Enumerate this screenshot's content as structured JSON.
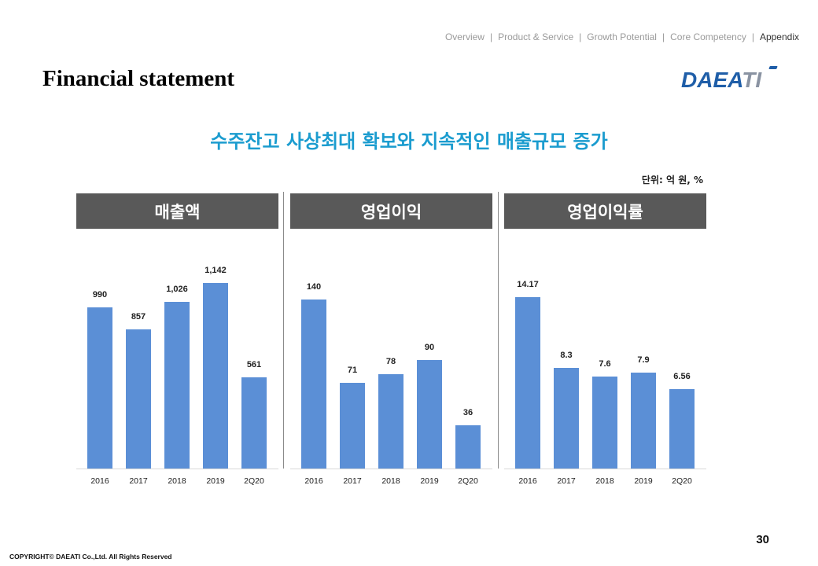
{
  "nav": {
    "items": [
      "Overview",
      "Product & Service",
      "Growth Potential",
      "Core Competency",
      "Appendix"
    ],
    "separator": "|",
    "active": "Appendix"
  },
  "title": "Financial statement",
  "logo": {
    "main": "DAEA",
    "accent": "TI"
  },
  "headline": "수주잔고 사상최대 확보와 지속적인 매출규모 증가",
  "unit_label": "단위: 억 원, %",
  "colors": {
    "bar": "#5b8fd6",
    "header_bg": "#595959",
    "headline": "#1b9ccf",
    "logo": "#1f5ea8"
  },
  "chart_data": [
    {
      "type": "bar",
      "title": "매출액",
      "categories": [
        "2016",
        "2017",
        "2018",
        "2019",
        "2Q20"
      ],
      "values": [
        990,
        857,
        1026,
        1142,
        561
      ],
      "labels": [
        "990",
        "857",
        "1,026",
        "1,142",
        "561"
      ],
      "ylim": [
        0,
        1450
      ]
    },
    {
      "type": "bar",
      "title": "영업이익",
      "categories": [
        "2016",
        "2017",
        "2018",
        "2019",
        "2Q20"
      ],
      "values": [
        140,
        71,
        78,
        90,
        36
      ],
      "labels": [
        "140",
        "71",
        "78",
        "90",
        "36"
      ],
      "ylim": [
        0,
        195
      ]
    },
    {
      "type": "bar",
      "title": "영업이익률",
      "categories": [
        "2016",
        "2017",
        "2018",
        "2019",
        "2Q20"
      ],
      "values": [
        14.17,
        8.3,
        7.6,
        7.9,
        6.56
      ],
      "labels": [
        "14.17",
        "8.3",
        "7.6",
        "7.9",
        "6.56"
      ],
      "ylim": [
        0,
        19.5
      ]
    }
  ],
  "page_number": "30",
  "copyright": "COPYRIGHT© DAEATI Co.,Ltd. All Rights Reserved"
}
